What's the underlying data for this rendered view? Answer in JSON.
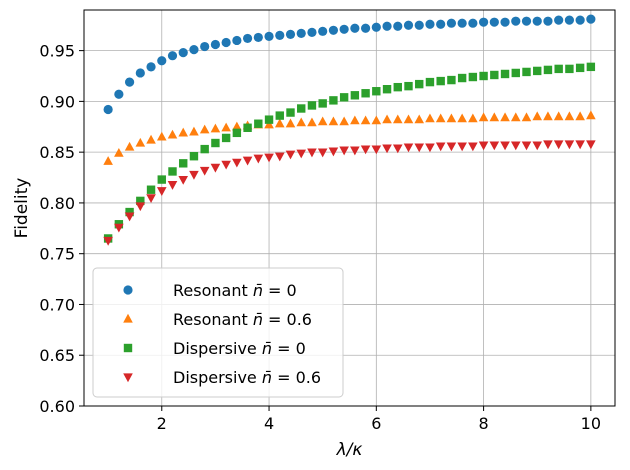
{
  "chart_data": {
    "type": "scatter",
    "title": "",
    "xlabel": "λ/κ",
    "ylabel": "Fidelity",
    "xlim": [
      0.55,
      10.45
    ],
    "ylim": [
      0.6,
      0.99
    ],
    "xticks": [
      2,
      4,
      6,
      8,
      10
    ],
    "yticks": [
      0.6,
      0.65,
      0.7,
      0.75,
      0.8,
      0.85,
      0.9,
      0.95
    ],
    "xtick_labels": [
      "2",
      "4",
      "6",
      "8",
      "10"
    ],
    "ytick_labels": [
      "0.60",
      "0.65",
      "0.70",
      "0.75",
      "0.80",
      "0.85",
      "0.90",
      "0.95"
    ],
    "grid": true,
    "legend_position": "lower-left",
    "x": [
      1.0,
      1.2,
      1.4,
      1.6,
      1.8,
      2.0,
      2.2,
      2.4,
      2.6,
      2.8,
      3.0,
      3.2,
      3.4,
      3.6,
      3.8,
      4.0,
      4.2,
      4.4,
      4.6,
      4.8,
      5.0,
      5.2,
      5.4,
      5.6,
      5.8,
      6.0,
      6.2,
      6.4,
      6.6,
      6.8,
      7.0,
      7.2,
      7.4,
      7.6,
      7.8,
      8.0,
      8.2,
      8.4,
      8.6,
      8.8,
      9.0,
      9.2,
      9.4,
      9.6,
      9.8,
      10.0
    ],
    "series": [
      {
        "name": "Resonant n̄ = 0",
        "legend_prefix": "Resonant ",
        "legend_nbar": "0",
        "marker": "circle",
        "color": "#1f77b4",
        "values": [
          0.892,
          0.907,
          0.919,
          0.928,
          0.934,
          0.94,
          0.945,
          0.948,
          0.951,
          0.954,
          0.956,
          0.958,
          0.96,
          0.962,
          0.963,
          0.964,
          0.965,
          0.966,
          0.967,
          0.968,
          0.969,
          0.97,
          0.971,
          0.972,
          0.972,
          0.973,
          0.974,
          0.974,
          0.975,
          0.975,
          0.976,
          0.976,
          0.977,
          0.977,
          0.977,
          0.978,
          0.978,
          0.978,
          0.979,
          0.979,
          0.979,
          0.979,
          0.98,
          0.98,
          0.98,
          0.981
        ]
      },
      {
        "name": "Resonant n̄ = 0.6",
        "legend_prefix": "Resonant ",
        "legend_nbar": "0.6",
        "marker": "triangle-up",
        "color": "#ff7f0e",
        "values": [
          0.841,
          0.849,
          0.855,
          0.859,
          0.862,
          0.865,
          0.867,
          0.869,
          0.87,
          0.872,
          0.873,
          0.874,
          0.875,
          0.876,
          0.877,
          0.877,
          0.878,
          0.878,
          0.879,
          0.879,
          0.88,
          0.88,
          0.88,
          0.881,
          0.881,
          0.881,
          0.882,
          0.882,
          0.882,
          0.882,
          0.883,
          0.883,
          0.883,
          0.883,
          0.883,
          0.884,
          0.884,
          0.884,
          0.884,
          0.884,
          0.885,
          0.885,
          0.885,
          0.885,
          0.885,
          0.886
        ]
      },
      {
        "name": "Dispersive n̄ = 0",
        "legend_prefix": "Dispersive ",
        "legend_nbar": "0",
        "marker": "square",
        "color": "#2ca02c",
        "values": [
          0.765,
          0.779,
          0.791,
          0.802,
          0.813,
          0.823,
          0.831,
          0.839,
          0.846,
          0.853,
          0.859,
          0.864,
          0.869,
          0.874,
          0.878,
          0.882,
          0.886,
          0.889,
          0.893,
          0.896,
          0.898,
          0.901,
          0.904,
          0.906,
          0.908,
          0.91,
          0.912,
          0.914,
          0.915,
          0.917,
          0.919,
          0.92,
          0.921,
          0.923,
          0.924,
          0.925,
          0.926,
          0.927,
          0.928,
          0.929,
          0.93,
          0.931,
          0.932,
          0.932,
          0.933,
          0.934
        ]
      },
      {
        "name": "Dispersive n̄ = 0.6",
        "legend_prefix": "Dispersive ",
        "legend_nbar": "0.6",
        "marker": "triangle-down",
        "color": "#d62728",
        "values": [
          0.763,
          0.776,
          0.787,
          0.797,
          0.805,
          0.812,
          0.818,
          0.823,
          0.828,
          0.832,
          0.835,
          0.838,
          0.84,
          0.842,
          0.844,
          0.845,
          0.846,
          0.848,
          0.849,
          0.85,
          0.85,
          0.851,
          0.852,
          0.852,
          0.853,
          0.853,
          0.854,
          0.854,
          0.855,
          0.855,
          0.855,
          0.856,
          0.856,
          0.856,
          0.856,
          0.857,
          0.857,
          0.857,
          0.857,
          0.857,
          0.857,
          0.858,
          0.858,
          0.858,
          0.858,
          0.858
        ]
      }
    ]
  }
}
